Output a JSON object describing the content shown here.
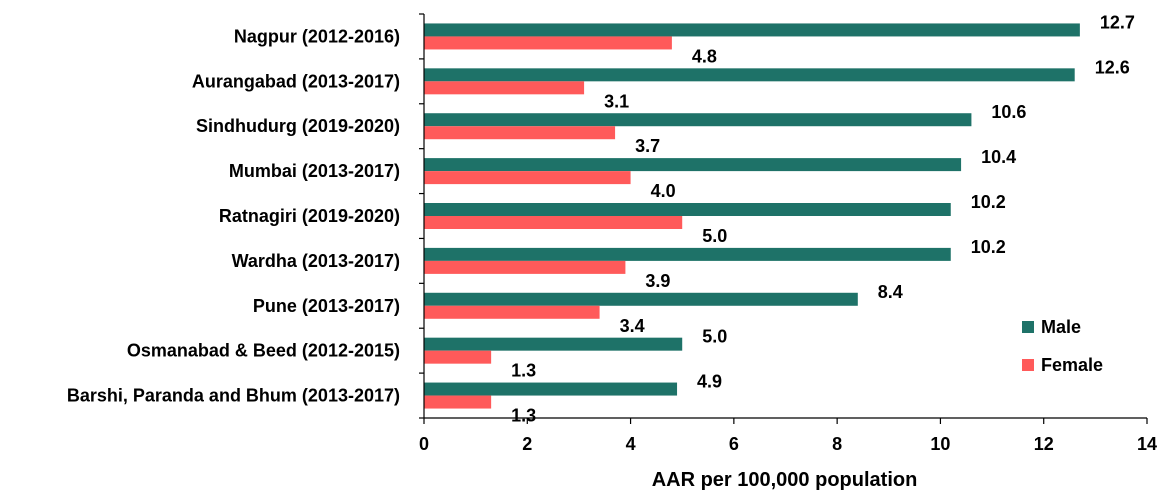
{
  "chart_data": {
    "type": "bar",
    "orientation": "horizontal",
    "categories": [
      "Nagpur (2012-2016)",
      "Aurangabad (2013-2017)",
      "Sindhudurg (2019-2020)",
      "Mumbai (2013-2017)",
      "Ratnagiri (2019-2020)",
      "Wardha (2013-2017)",
      "Pune (2013-2017)",
      "Osmanabad & Beed (2012-2015)",
      "Barshi, Paranda and Bhum (2013-2017)"
    ],
    "series": [
      {
        "name": "Male",
        "color": "#1e7268",
        "values": [
          12.7,
          12.6,
          10.6,
          10.4,
          10.2,
          10.2,
          8.4,
          5.0,
          4.9
        ],
        "labels": [
          "12.7",
          "12.6",
          "10.6",
          "10.4",
          "10.2",
          "10.2",
          "8.4",
          "5.0",
          "4.9"
        ]
      },
      {
        "name": "Female",
        "color": "#ff5a5a",
        "values": [
          4.8,
          3.1,
          3.7,
          4.0,
          5.0,
          3.9,
          3.4,
          1.3,
          1.3
        ],
        "labels": [
          "4.8",
          "3.1",
          "3.7",
          "4.0",
          "5.0",
          "3.9",
          "3.4",
          "1.3",
          "1.3"
        ]
      }
    ],
    "xlabel": "AAR per 100,000 population",
    "ylabel": "",
    "xlim": [
      0,
      14
    ],
    "xticks": [
      "0",
      "2",
      "4",
      "6",
      "8",
      "10",
      "12",
      "14"
    ],
    "grid": false,
    "legend": "right"
  }
}
